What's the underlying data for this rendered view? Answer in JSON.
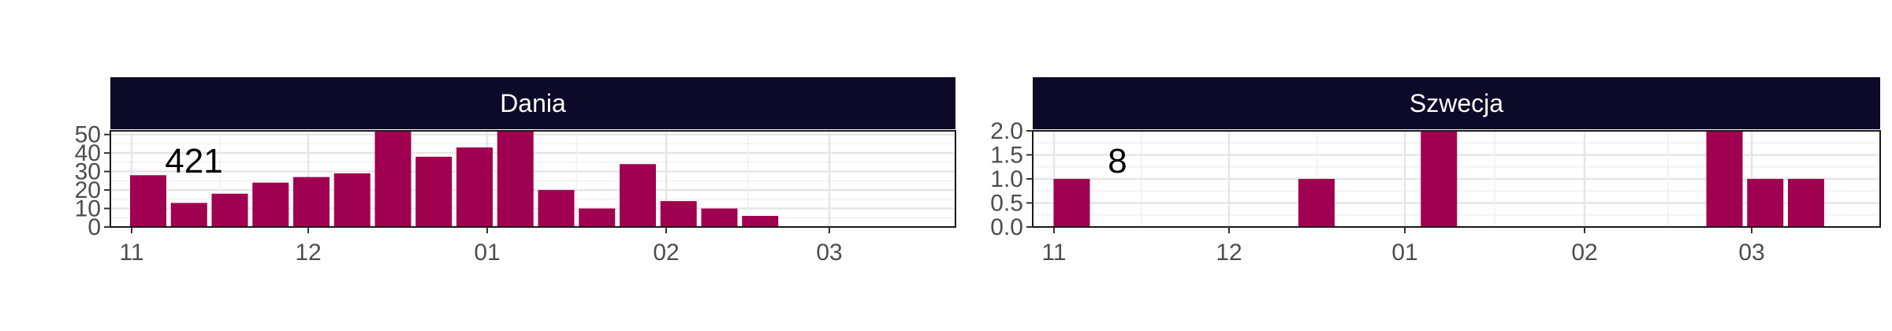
{
  "chart_data": [
    {
      "type": "bar",
      "panel": "Dania",
      "total_label": "421",
      "x_ticks": [
        "11",
        "12",
        "01",
        "02",
        "03"
      ],
      "y_ticks": [
        "0",
        "10",
        "20",
        "30",
        "40",
        "50"
      ],
      "ylim": [
        0,
        52
      ],
      "grid": true,
      "bar_color": "#a00050",
      "strip_color": "#0c0a28",
      "x": [
        1,
        2,
        3,
        4,
        5,
        6,
        7,
        8,
        9,
        10,
        11,
        12,
        13,
        14,
        15,
        16,
        17,
        18,
        19,
        20
      ],
      "values": [
        28,
        13,
        18,
        24,
        27,
        29,
        55,
        38,
        43,
        53,
        20,
        10,
        34,
        14,
        10,
        6,
        0,
        0,
        0,
        0
      ]
    },
    {
      "type": "bar",
      "panel": "Szwecja",
      "total_label": "8",
      "x_ticks": [
        "11",
        "12",
        "01",
        "02",
        "03"
      ],
      "y_ticks": [
        "0.0",
        "0.5",
        "1.0",
        "1.5",
        "2.0"
      ],
      "ylim": [
        0,
        2
      ],
      "grid": true,
      "bar_color": "#a00050",
      "strip_color": "#0c0a28",
      "x": [
        1,
        2,
        3,
        4,
        5,
        6,
        7,
        8,
        9,
        10,
        11,
        12,
        13,
        14,
        15,
        16,
        17,
        18,
        19,
        20
      ],
      "values": [
        1,
        0,
        0,
        0,
        0,
        0,
        1,
        0,
        0,
        2,
        0,
        0,
        0,
        0,
        0,
        0,
        2,
        1,
        1,
        0
      ]
    }
  ]
}
